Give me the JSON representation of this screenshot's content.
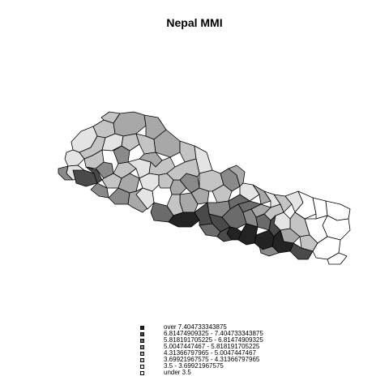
{
  "title": "Nepal MMI",
  "legend": [
    {
      "label": "over 7.404733343875",
      "fill": "#232323"
    },
    {
      "label": "6.81474909325 - 7.404733343875",
      "fill": "#4a4a4a"
    },
    {
      "label": "5.818191705225 - 6.81474909325",
      "fill": "#6b6b6b"
    },
    {
      "label": "5.0047447467 - 5.818191705225",
      "fill": "#8a8a8a"
    },
    {
      "label": "4.31366797965 - 5.0047447467",
      "fill": "#a8a8a8"
    },
    {
      "label": "3.69921967575 - 4.31366797965",
      "fill": "#c4c4c4"
    },
    {
      "label": "3.5 - 3.69921967575",
      "fill": "#e4e4e4"
    },
    {
      "label": "under 3.5",
      "fill": "#ffffff"
    }
  ]
}
